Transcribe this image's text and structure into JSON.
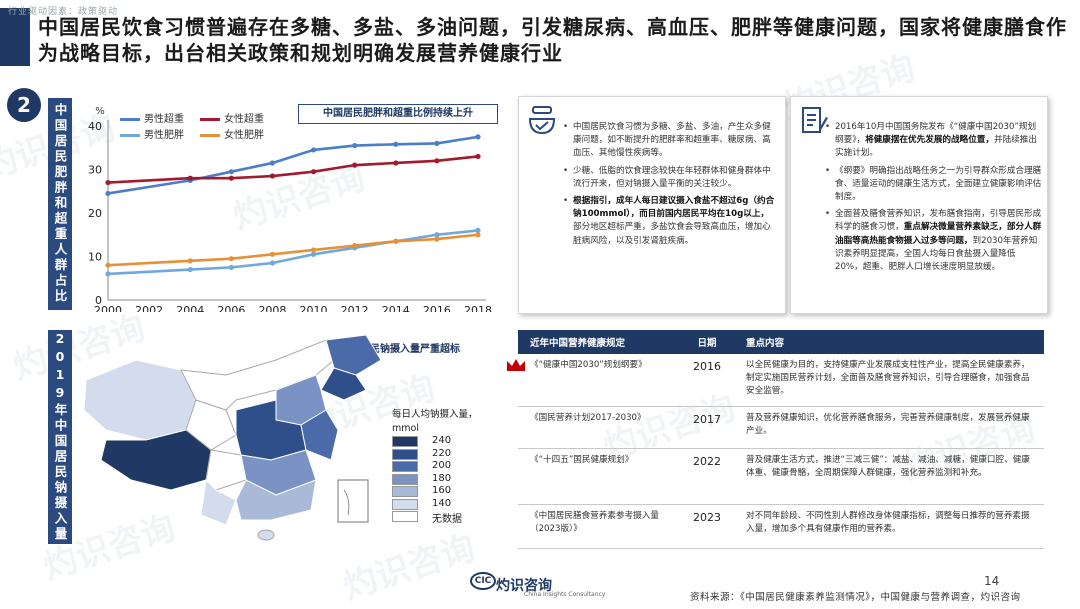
{
  "header": {
    "breadcrumb": "行业驱动因素：政策驱动",
    "title": "中国居民饮食习惯普遍存在多糖、多盐、多油问题，引发糖尿病、高血压、肥胖等健康问题，国家将健康膳食作为战略目标，出台相关政策和规划明确发展营养健康行业",
    "section_number": "2"
  },
  "left_panel": {
    "top_label": "中国居民肥胖和超重人群占比",
    "bottom_label": "2019年中国居民钠摄入量"
  },
  "chart_data": {
    "type": "line",
    "title": "中国居民肥胖和超重比例持续上升",
    "ylabel": "%",
    "ylim": [
      0,
      40
    ],
    "yticks": [
      0,
      10,
      20,
      30,
      40
    ],
    "xticks": [
      "2000",
      "2002",
      "2004",
      "2006",
      "2008",
      "2010",
      "2012",
      "2014",
      "2016",
      "2018"
    ],
    "x": [
      2000,
      2004,
      2006,
      2008,
      2010,
      2012,
      2014,
      2016,
      2018
    ],
    "grid": false,
    "series": [
      {
        "name": "男性超重",
        "color": "#4a7ec8",
        "values": [
          24.5,
          27.5,
          29.5,
          31.5,
          34.5,
          35.5,
          35.8,
          36.0,
          37.5
        ]
      },
      {
        "name": "女性超重",
        "color": "#a3192e",
        "values": [
          27.0,
          28.0,
          28.0,
          28.5,
          29.5,
          31.0,
          31.5,
          32.0,
          33.0
        ]
      },
      {
        "name": "男性肥胖",
        "color": "#6fa8dc",
        "values": [
          6.0,
          7.0,
          7.5,
          8.5,
          10.5,
          12.0,
          13.5,
          15.0,
          16.0
        ]
      },
      {
        "name": "女性肥胖",
        "color": "#e69138",
        "values": [
          8.0,
          9.0,
          9.5,
          10.5,
          11.5,
          12.5,
          13.5,
          14.0,
          15.0
        ]
      }
    ]
  },
  "card_left": {
    "bullets": [
      {
        "plain": "中国居民饮食习惯为多糖、多盐、多油，产生众多健康问题，如不断提升的肥胖率和超重率、糖尿病、高血压、其他慢性疾病等。"
      },
      {
        "plain": "少糖、低脂的饮食理念较快在年轻群体和健身群体中流行开来，但对钠摄入量平衡的关注较少。"
      },
      {
        "bold": "根据指引，成年人每日建议摄入食盐不超过6g（约合钠100mmol），而目前国内居民平均在10g以上，",
        "plain": "部分地区超标严重，多盐饮食会导致高血压，增加心脏病风险，以及引发肾脏疾病。"
      }
    ]
  },
  "card_right": {
    "bullets": [
      {
        "plain": "2016年10月中国国务院发布《“健康中国2030”规划纲要》，",
        "bold": "将健康摆在优先发展的战略位置，",
        "plain2": "并陆续推出实施计划。"
      },
      {
        "plain": "《纲要》明确指出战略任务之一为引导群众形成合理膳食、适量运动的健康生活方式，全面建立健康影响评估制度。"
      },
      {
        "plain": "全面普及膳食营养知识，发布膳食指南，引导居民形成科学的膳食习惯，",
        "bold": "重点解决微量营养素缺乏，部分人群油脂等高热能食物摄入过多等问题，",
        "plain2": "到2030年营养知识素养明显提高，全国人均每日食盐摄入量降低20%，超重、肥胖人口增长速度明显放缓。"
      }
    ]
  },
  "map": {
    "title": "中国居民钠摄入量严重超标",
    "legend_title": "每日人均钠摄入量，",
    "legend_unit": "mmol",
    "legend_items": [
      {
        "label": "240",
        "color": "#1f3864"
      },
      {
        "label": "220",
        "color": "#2f4f8a"
      },
      {
        "label": "200",
        "color": "#4a6aa8"
      },
      {
        "label": "180",
        "color": "#7b93c4"
      },
      {
        "label": "160",
        "color": "#a9bad9"
      },
      {
        "label": "140",
        "color": "#d3dcec"
      },
      {
        "label": "无数据",
        "color": "#ffffff"
      }
    ]
  },
  "table": {
    "headers": [
      "近年中国营养健康规定",
      "日期",
      "重点内容"
    ],
    "rows": [
      {
        "name": "《“健康中国2030”规划纲要》",
        "year": "2016",
        "content": "以全民健康为目的，支持健康产业发展成支柱性产业，提高全民健康素养，制定实施国民营养计划，全面普及膳食营养知识，引导合理膳食，加强食品安全监管。"
      },
      {
        "name": "《国民营养计划2017-2030》",
        "year": "2017",
        "content": "普及营养健康知识，优化营养膳食服务，完善营养健康制度，发展营养健康产业。"
      },
      {
        "name": "《“十四五”国民健康规划》",
        "year": "2022",
        "content": "普及健康生活方式，推进“三减三健”：减盐、减油、减糖，健康口腔、健康体重、健康骨骼，全周期保障人群健康，强化营养监测和补充。"
      },
      {
        "name": "《中国居民膳食营养素参考摄入量（2023版）》",
        "year": "2023",
        "content": "对不同年龄段、不同性别人群修改身体健康指标，调整每日推荐的营养素摄入量，增加多个具有健康作用的营养素。"
      }
    ]
  },
  "footer": {
    "page_number": "14",
    "source": "资料来源：《中国居民健康素养监测情况》，中国健康与营养调查，灼识咨询",
    "logo_text": "灼识咨询",
    "logo_sub": "China Insights Consultancy",
    "logo_mark": "CIC"
  },
  "watermark": {
    "text": "灼识咨询",
    "text_en": "China Insights Consultancy"
  }
}
